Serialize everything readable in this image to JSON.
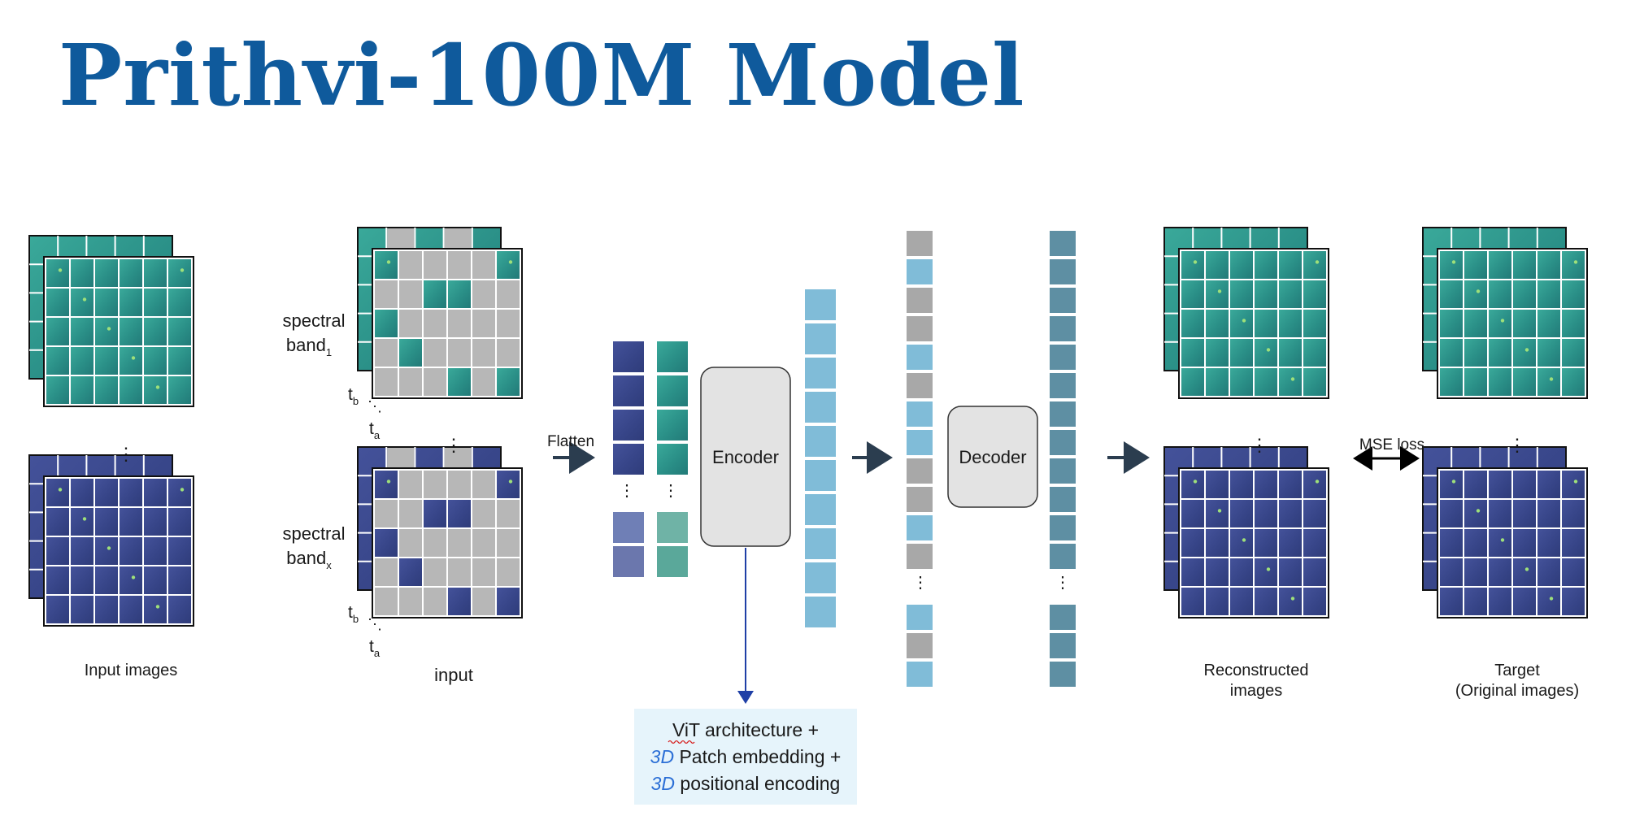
{
  "title": "Prithvi-100M Model",
  "labels": {
    "input_images": "Input images",
    "spectral": "spectral",
    "band": "band",
    "band_sub_1": "1",
    "band_sub_x": "x",
    "t": "t",
    "t_sub_b": "b",
    "t_sub_a": "a",
    "input": "input",
    "flatten": "Flatten",
    "encoder": "Encoder",
    "decoder": "Decoder",
    "mse_loss": "MSE loss",
    "reconstructed_line1": "Reconstructed",
    "reconstructed_line2": "images",
    "target_line1": "Target",
    "target_line2": "(Original images)",
    "vertical_dots": "⋮",
    "diag_dots": "⋱"
  },
  "note": {
    "line1": "ViT architecture +",
    "line2_em": "3D",
    "line2_rest": " Patch embedding +",
    "line3_em": "3D",
    "line3_rest": " positional encoding"
  },
  "colors": {
    "title": "#0f5a9c",
    "teal_tile": "#2f9e90",
    "purple_tile": "#3b4a8f",
    "mask_gray": "#b7b7b7",
    "token_blue": "#80bcd8",
    "token_gray": "#a8a8a8",
    "decoder_token": "#5e8fa3",
    "arrow": "#2b3d4f",
    "link_blue": "#1f3fa6",
    "note_bg": "#e6f4fb",
    "em_blue": "#2b6fd6"
  }
}
